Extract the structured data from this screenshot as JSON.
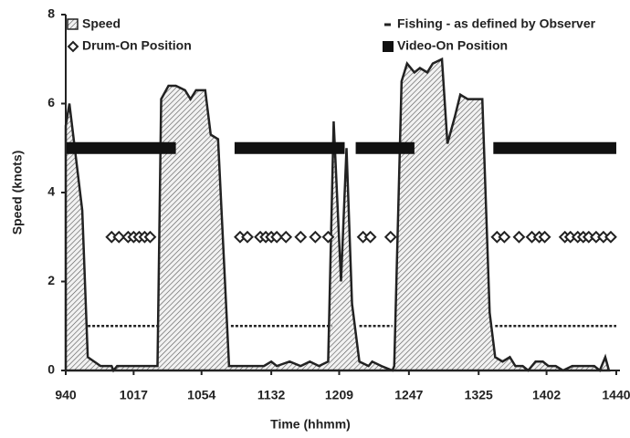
{
  "chart_data": {
    "type": "line",
    "xlabel": "Time (hhmm)",
    "ylabel": "Speed (knots)",
    "xlim": [
      580,
      882
    ],
    "ylim": [
      0,
      8
    ],
    "xticks": [
      {
        "value": 580,
        "label": "940"
      },
      {
        "value": 617,
        "label": "1017"
      },
      {
        "value": 654,
        "label": "1054"
      },
      {
        "value": 692,
        "label": "1132"
      },
      {
        "value": 729,
        "label": "1209"
      },
      {
        "value": 767,
        "label": "1247"
      },
      {
        "value": 805,
        "label": "1325"
      },
      {
        "value": 842,
        "label": "1402"
      },
      {
        "value": 880,
        "label": "1440"
      }
    ],
    "yticks": [
      0,
      2,
      4,
      6,
      8
    ],
    "legend": "top",
    "series": [
      {
        "name": "Speed",
        "type": "area",
        "color": "#222222",
        "x": [
          580,
          582,
          589,
          592,
          599,
          605,
          606,
          608,
          619,
          630,
          632,
          636,
          640,
          645,
          648,
          651,
          656,
          659,
          663,
          669,
          678,
          688,
          692,
          695,
          702,
          708,
          713,
          718,
          723,
          726,
          730,
          733,
          736,
          740,
          745,
          747,
          752,
          758,
          759,
          763,
          766,
          770,
          773,
          777,
          780,
          785,
          788,
          792,
          795,
          799,
          807,
          811,
          814,
          818,
          822,
          825,
          829,
          832,
          836,
          840,
          843,
          847,
          851,
          856,
          861,
          868,
          871,
          874,
          876
        ],
        "values": [
          5.5,
          6,
          3.6,
          0.3,
          0.1,
          0.1,
          0,
          0.1,
          0.1,
          0.1,
          6.1,
          6.4,
          6.4,
          6.3,
          6.1,
          6.3,
          6.3,
          5.3,
          5.2,
          0.1,
          0.1,
          0.1,
          0.2,
          0.1,
          0.2,
          0.1,
          0.2,
          0.1,
          0.2,
          5.6,
          2,
          5,
          1.5,
          0.2,
          0.1,
          0.2,
          0.1,
          0,
          0.1,
          6.5,
          6.9,
          6.7,
          6.8,
          6.7,
          6.9,
          7,
          5.1,
          5.7,
          6.2,
          6.1,
          6.1,
          1.3,
          0.3,
          0.2,
          0.3,
          0.1,
          0.1,
          0,
          0.2,
          0.2,
          0.1,
          0.1,
          0,
          0.1,
          0.1,
          0.1,
          0,
          0.3,
          0
        ]
      },
      {
        "name": "Fishing - as defined by Observer",
        "type": "dotted",
        "color": "#222222",
        "x": [
          592,
          631,
          650,
          670,
          725,
          732,
          740,
          758,
          786,
          814,
          880
        ],
        "values": [
          1,
          1,
          null,
          1,
          1,
          null,
          1,
          1,
          null,
          1,
          1
        ]
      },
      {
        "name": "Drum-On Position",
        "type": "diamond",
        "color": "#222222",
        "x": [
          605,
          609,
          614,
          617,
          620,
          623,
          626,
          675,
          679,
          686,
          689,
          692,
          695,
          700,
          708,
          716,
          723,
          742,
          746,
          757,
          815,
          819,
          827,
          834,
          838,
          841,
          852,
          855,
          859,
          862,
          865,
          869,
          873,
          877
        ],
        "values": [
          3,
          3,
          3,
          3,
          3,
          3,
          3,
          3,
          3,
          3,
          3,
          3,
          3,
          3,
          3,
          3,
          3,
          3,
          3,
          3,
          3,
          3,
          3,
          3,
          3,
          3,
          3,
          3,
          3,
          3,
          3,
          3,
          3,
          3
        ]
      },
      {
        "name": "Video-On Position",
        "type": "thick",
        "color": "#111111",
        "x": [
          580,
          640,
          656,
          672,
          732,
          735,
          738,
          770,
          792,
          813,
          880
        ],
        "values": [
          5,
          5,
          null,
          5,
          5,
          null,
          5,
          5,
          null,
          5,
          5
        ]
      }
    ]
  }
}
